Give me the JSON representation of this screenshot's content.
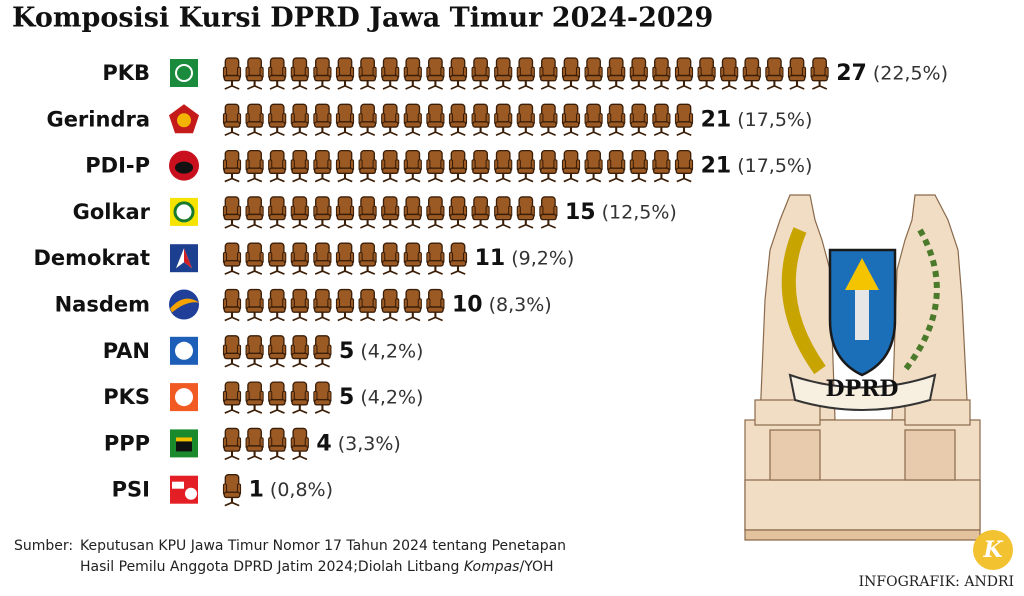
{
  "chart_data": {
    "type": "pictograph",
    "title": "Komposisi Kursi DPRD Jawa Timur 2024-2029",
    "categories": [
      "PKB",
      "Gerindra",
      "PDI-P",
      "Golkar",
      "Demokrat",
      "Nasdem",
      "PAN",
      "PKS",
      "PPP",
      "PSI"
    ],
    "values": [
      27,
      21,
      21,
      15,
      11,
      10,
      5,
      5,
      4,
      1
    ],
    "shares": [
      22.5,
      17.5,
      17.5,
      12.5,
      9.2,
      8.3,
      4.2,
      4.2,
      3.3,
      0.8
    ],
    "share_labels": [
      "(22,5%)",
      "(17,5%)",
      "(17,5%)",
      "(12,5%)",
      "(9,2%)",
      "(8,3%)",
      "(4,2%)",
      "(4,2%)",
      "(3,3%)",
      "(0,8%)"
    ],
    "color": "#9b5a24",
    "source_label": "Sumber:",
    "source": [
      "Keputusan KPU Jawa Timur Nomor 17 Tahun 2024 tentang Penetapan",
      "Hasil Pemilu Anggota DPRD Jatim 2024;Diolah Litbang ",
      "Kompas",
      "/YOH"
    ],
    "credit": "INFOGRAFIK: ANDRI",
    "emblem_text": "DPRD"
  }
}
